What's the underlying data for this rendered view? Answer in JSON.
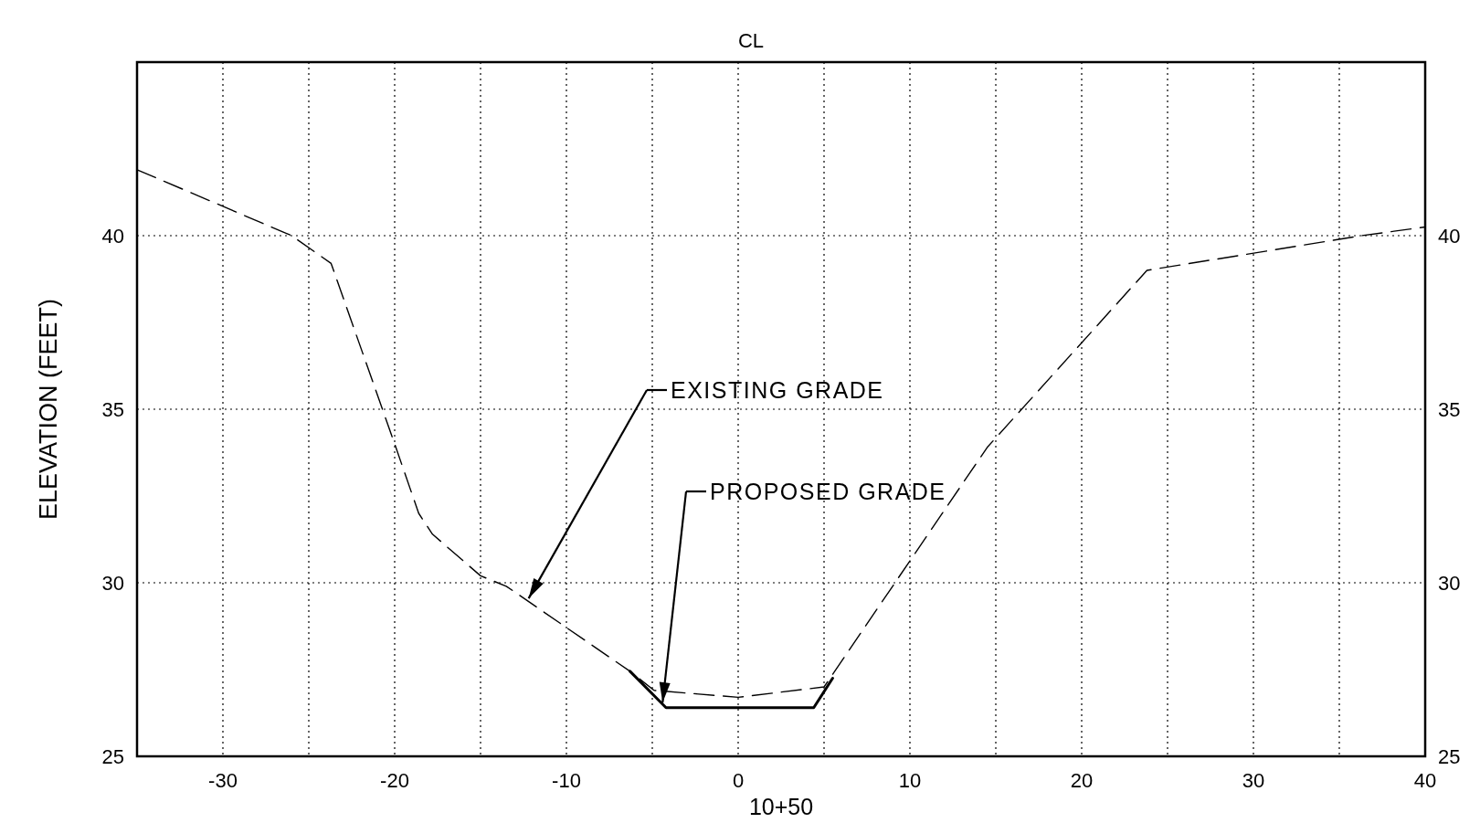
{
  "chart_data": {
    "type": "line",
    "ylabel": "ELEVATION (FEET)",
    "xlabel": "10+50",
    "xlim": [
      -35,
      40
    ],
    "ylim": [
      25,
      45
    ],
    "y2lim": [
      25,
      45
    ],
    "xticks": [
      {
        "value": -35,
        "label": null
      },
      -30,
      {
        "value": -25,
        "label": null
      },
      -20,
      {
        "value": -15,
        "label": null
      },
      -10,
      {
        "value": -5,
        "label": null
      },
      0,
      {
        "value": 5,
        "label": null
      },
      10,
      {
        "value": 15,
        "label": null
      },
      20,
      {
        "value": 25,
        "label": null
      },
      30,
      {
        "value": 35,
        "label": null
      },
      40
    ],
    "yticks": [
      25,
      30,
      35,
      40
    ],
    "y2ticks": [
      25,
      30,
      35,
      40
    ],
    "grid": true,
    "marker": "none",
    "series": [
      {
        "color": "#000000",
        "line_style": "dashed",
        "x": [
          -35,
          -26,
          -23.7,
          -20,
          -18.6,
          -17.8,
          -15,
          -13.5,
          -6.3,
          -4.9,
          0,
          5,
          14.5,
          23.8,
          36.3,
          40
        ],
        "values": [
          41.9,
          40,
          39.2,
          34,
          32,
          31.4,
          30.2,
          29.9,
          27.45,
          26.9,
          26.7,
          27,
          33.9,
          39,
          40,
          40.25
        ]
      },
      {
        "color": "#000000",
        "line_style": "solid",
        "x": [
          -6.3,
          -4.2,
          4.4,
          5.5
        ],
        "values": [
          27.45,
          26.4,
          26.4,
          27.25
        ]
      }
    ],
    "annotations": [
      "CL",
      {
        "text": "EXISTING GRADE",
        "x": -12.2,
        "y": 29.55
      },
      {
        "text": "PROPOSED GRADE",
        "x": -4.4,
        "y": 26.55
      }
    ]
  }
}
